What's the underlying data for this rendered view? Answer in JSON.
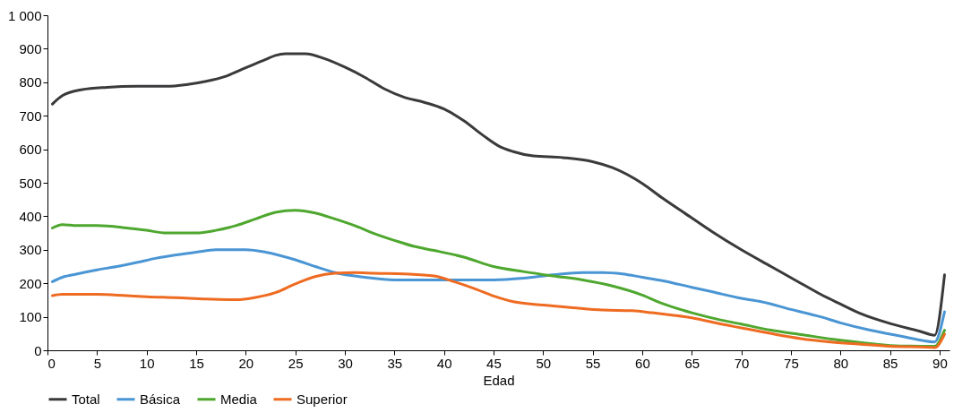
{
  "chart_data": {
    "type": "line",
    "xlabel": "Edad",
    "xlim": [
      0,
      91
    ],
    "xticks": [
      0,
      5,
      10,
      15,
      20,
      25,
      30,
      35,
      40,
      45,
      50,
      55,
      60,
      65,
      70,
      75,
      80,
      85,
      90
    ],
    "ylim": [
      0,
      1000
    ],
    "yticks": [
      0,
      100,
      200,
      300,
      400,
      500,
      600,
      700,
      800,
      900,
      {
        "value": 1000,
        "label": "1 000"
      }
    ],
    "grid": false,
    "legend": "bottom",
    "marker": "none",
    "line_style": "solid",
    "series": [
      {
        "name": "Total",
        "color": "#3a3a3c",
        "x": [
          0.5,
          1.5,
          3.5,
          6,
          9,
          12,
          14,
          16,
          18,
          20,
          22,
          23,
          24,
          26,
          28,
          30,
          32,
          34,
          36,
          38,
          40,
          42,
          44,
          45.5,
          47,
          49,
          52,
          55,
          57,
          60,
          62,
          65,
          67,
          70,
          73,
          76,
          78,
          80,
          82,
          85,
          88,
          89.5,
          90.5
        ],
        "values": [
          735,
          760,
          778,
          785,
          788,
          788,
          793,
          803,
          818,
          843,
          868,
          880,
          885,
          885,
          870,
          845,
          815,
          780,
          755,
          740,
          720,
          685,
          640,
          610,
          593,
          580,
          575,
          563,
          545,
          498,
          455,
          395,
          355,
          300,
          250,
          200,
          167,
          138,
          110,
          80,
          57,
          45,
          225
        ]
      },
      {
        "name": "Básica",
        "color": "#4a95d4",
        "x": [
          0.5,
          1.5,
          3,
          5,
          7,
          9,
          11,
          13,
          15,
          17,
          20,
          22,
          25,
          27,
          29,
          32,
          35,
          38,
          40,
          45,
          48,
          51,
          54,
          56,
          58,
          60,
          62,
          65,
          67,
          70,
          72,
          75,
          78,
          80,
          83,
          86,
          89.5,
          90.5
        ],
        "values": [
          205,
          218,
          228,
          240,
          250,
          262,
          275,
          285,
          293,
          300,
          300,
          293,
          270,
          250,
          232,
          218,
          210,
          210,
          210,
          210,
          215,
          225,
          232,
          232,
          228,
          218,
          208,
          188,
          175,
          155,
          145,
          122,
          100,
          82,
          60,
          43,
          25,
          115
        ]
      },
      {
        "name": "Media",
        "color": "#4ea72e",
        "x": [
          0.5,
          1.5,
          3,
          5,
          8,
          10,
          12,
          15,
          17,
          19,
          21,
          23,
          25,
          27,
          29,
          31,
          33,
          35,
          37,
          39,
          42,
          45,
          48,
          51,
          54,
          57,
          60,
          62,
          65,
          68,
          70,
          73,
          76,
          80,
          83,
          86,
          89.5,
          90.5
        ],
        "values": [
          365,
          375,
          372,
          372,
          365,
          358,
          350,
          350,
          358,
          372,
          392,
          412,
          418,
          410,
          392,
          372,
          348,
          328,
          310,
          298,
          278,
          250,
          235,
          222,
          210,
          192,
          165,
          140,
          112,
          90,
          78,
          60,
          47,
          30,
          20,
          13,
          12,
          60
        ]
      },
      {
        "name": "Superior",
        "color": "#ee6b21",
        "x": [
          0.5,
          1.5,
          5,
          8,
          10,
          13,
          16,
          19,
          21,
          23,
          25,
          27,
          29,
          31,
          33,
          36,
          39,
          41,
          43,
          45,
          47,
          50,
          53,
          56,
          59,
          61,
          63,
          65,
          68,
          70,
          73,
          76,
          79,
          82,
          85,
          88,
          89.5,
          90.5
        ],
        "values": [
          163,
          167,
          167,
          163,
          160,
          157,
          153,
          151,
          158,
          172,
          198,
          220,
          230,
          232,
          230,
          228,
          222,
          205,
          185,
          162,
          145,
          135,
          127,
          120,
          118,
          112,
          105,
          97,
          78,
          67,
          50,
          35,
          25,
          18,
          12,
          10,
          8,
          48
        ]
      }
    ]
  }
}
